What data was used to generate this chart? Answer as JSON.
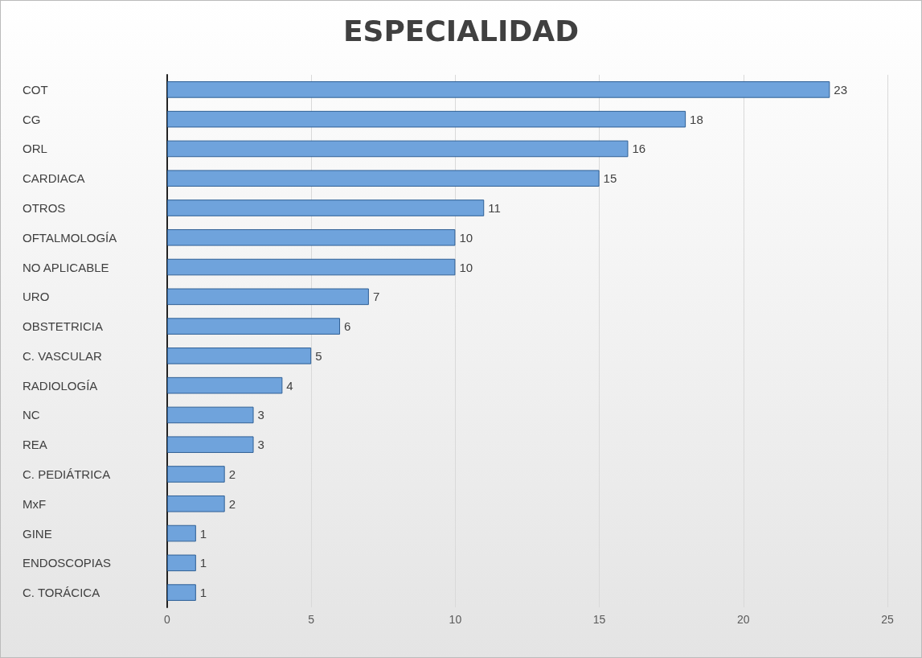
{
  "chart_data": {
    "type": "bar",
    "title": "ESPECIALIDAD",
    "orientation": "horizontal",
    "categories": [
      "COT",
      "CG",
      "ORL",
      "CARDIACA",
      "OTROS",
      "OFTALMOLOGÍA",
      "NO APLICABLE",
      "URO",
      "OBSTETRICIA",
      "C. VASCULAR",
      "RADIOLOGÍA",
      "NC",
      "REA",
      "C. PEDIÁTRICA",
      "MxF",
      "GINE",
      "ENDOSCOPIAS",
      "C. TORÁCICA"
    ],
    "values": [
      23,
      18,
      16,
      15,
      11,
      10,
      10,
      7,
      6,
      5,
      4,
      3,
      3,
      2,
      2,
      1,
      1,
      1
    ],
    "color": "#6fa3dc",
    "xlim": [
      0,
      25
    ],
    "xticks": [
      0,
      5,
      10,
      15,
      20,
      25
    ],
    "grid": "x",
    "data_labels": true
  }
}
